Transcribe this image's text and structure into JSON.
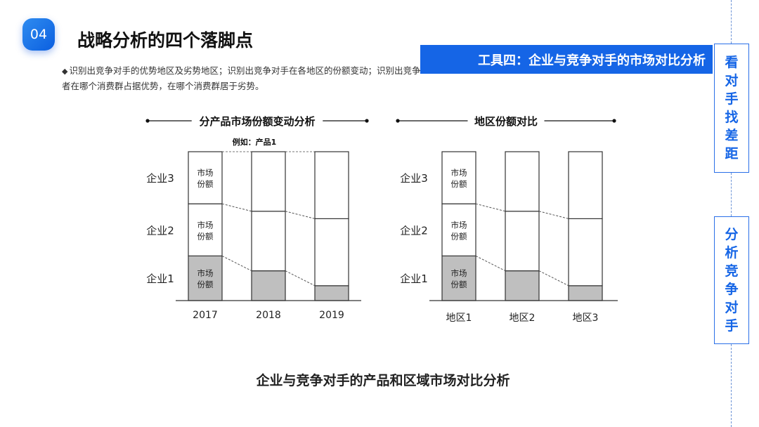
{
  "badge": "04",
  "page_title": "战略分析的四个落脚点",
  "description": "识别出竞争对手的优势地区及劣势地区；识别出竞争对手在各地区的份额变动；识别出竞争者在哪个消费群占据优势，在哪个消费群居于劣势。",
  "banner": "工具四：企业与竞争对手的市场对比分析",
  "side_tags": [
    "看对手找差距",
    "分析竞争对手"
  ],
  "caption": "企业与竞争对手的产品和区域市场对比分析",
  "colors": {
    "accent": "#1565e6",
    "bar_fill": "#bfbfbf",
    "border": "#333333"
  },
  "chart_data": [
    {
      "type": "bar",
      "stacked": true,
      "title": "分产品市场份额变动分析",
      "subtitle": "例如：产品1",
      "categories": [
        "2017",
        "2018",
        "2019"
      ],
      "series": [
        {
          "name": "企业1",
          "values": [
            0.3,
            0.2,
            0.1
          ]
        },
        {
          "name": "企业2",
          "values": [
            0.35,
            0.4,
            0.45
          ]
        },
        {
          "name": "企业3",
          "values": [
            0.35,
            0.4,
            0.45
          ]
        }
      ],
      "segment_label": "市场份额",
      "labelled_category": "2017",
      "ylim": [
        0,
        1
      ]
    },
    {
      "type": "bar",
      "stacked": true,
      "title": "地区份额对比",
      "categories": [
        "地区1",
        "地区2",
        "地区3"
      ],
      "series": [
        {
          "name": "企业1",
          "values": [
            0.3,
            0.2,
            0.1
          ]
        },
        {
          "name": "企业2",
          "values": [
            0.35,
            0.4,
            0.45
          ]
        },
        {
          "name": "企业3",
          "values": [
            0.35,
            0.4,
            0.45
          ]
        }
      ],
      "segment_label": "市场份额",
      "labelled_category": "地区1",
      "ylim": [
        0,
        1
      ]
    }
  ]
}
